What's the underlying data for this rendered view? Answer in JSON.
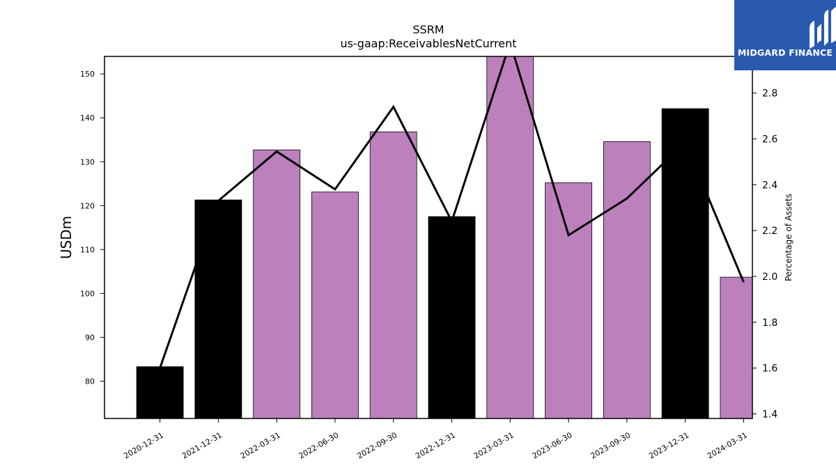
{
  "logo": {
    "text": "MIDGARD FINANCE"
  },
  "chart_data": {
    "type": "bar",
    "title": "SSRM",
    "subtitle": "us-gaap:ReceivablesNetCurrent",
    "ylabel": "USDm",
    "y2label": "Percentage of Assets",
    "categories": [
      "2020-12-31",
      "2021-12-31",
      "2022-03-31",
      "2022-06-30",
      "2022-09-30",
      "2022-12-31",
      "2023-03-31",
      "2023-06-30",
      "2023-09-30",
      "2023-12-31",
      "2024-03-31"
    ],
    "series": [
      {
        "type": "bar",
        "values": [
          83.3,
          121.3,
          132.7,
          123.1,
          136.8,
          117.5,
          154.5,
          125.2,
          134.6,
          142.1,
          103.7
        ]
      },
      {
        "type": "line",
        "axis": "right",
        "values": [
          1.6,
          2.33,
          2.545,
          2.38,
          2.74,
          2.24,
          3.02,
          2.18,
          2.34,
          2.585,
          1.975
        ]
      }
    ],
    "bar_colors": [
      "#000000",
      "#000000",
      "#bc80bd",
      "#bc80bd",
      "#bc80bd",
      "#000000",
      "#bc80bd",
      "#bc80bd",
      "#bc80bd",
      "#000000",
      "#bc80bd"
    ],
    "line_color": "#000000",
    "ylim": [
      71.5,
      154
    ],
    "y2lim": [
      1.38,
      2.96
    ],
    "yticks": [
      80,
      90,
      100,
      110,
      120,
      130,
      140,
      150
    ],
    "y2ticks": [
      "1.4",
      "1.6",
      "1.8",
      "2.0",
      "2.2",
      "2.4",
      "2.6",
      "2.8"
    ],
    "grid": false
  }
}
